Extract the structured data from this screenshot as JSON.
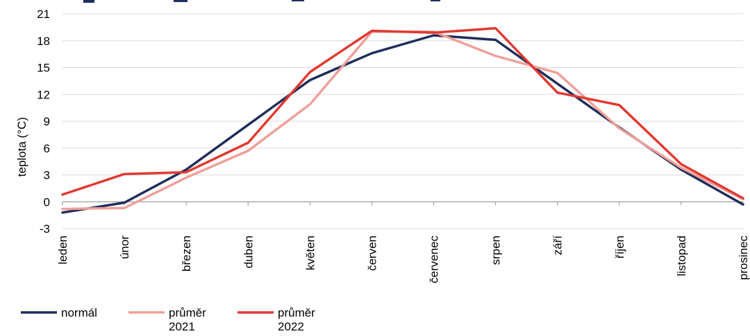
{
  "chart_data": {
    "type": "line",
    "title": "",
    "xlabel": "",
    "ylabel": "teplota (°C)",
    "ylim": [
      -3,
      21
    ],
    "yticks": [
      -3,
      0,
      3,
      6,
      9,
      12,
      15,
      18,
      21
    ],
    "categories": [
      "leden",
      "únor",
      "březen",
      "duben",
      "květen",
      "červen",
      "červenec",
      "srpen",
      "září",
      "říjen",
      "listopad",
      "prosinec"
    ],
    "grid": true,
    "legend_position": "bottom-left",
    "series": [
      {
        "name": "normál",
        "color": "#1f2d5c",
        "values": [
          -1.2,
          -0.1,
          3.6,
          8.6,
          13.6,
          16.6,
          18.6,
          18.1,
          13.2,
          8.3,
          3.6,
          -0.3
        ]
      },
      {
        "name": "průměr 2021",
        "color": "#f0a09a",
        "values": [
          -0.8,
          -0.7,
          2.7,
          5.7,
          10.9,
          19.0,
          19.0,
          16.3,
          14.4,
          8.2,
          3.8,
          0.3
        ]
      },
      {
        "name": "průměr 2022",
        "color": "#e03a32",
        "values": [
          0.8,
          3.1,
          3.3,
          6.6,
          14.5,
          19.1,
          18.9,
          19.4,
          12.2,
          10.8,
          4.2,
          0.4
        ]
      }
    ],
    "legend": [
      {
        "lines": [
          "normál"
        ]
      },
      {
        "lines": [
          "průměr",
          "2021"
        ]
      },
      {
        "lines": [
          "průměr",
          "2022"
        ]
      }
    ]
  }
}
